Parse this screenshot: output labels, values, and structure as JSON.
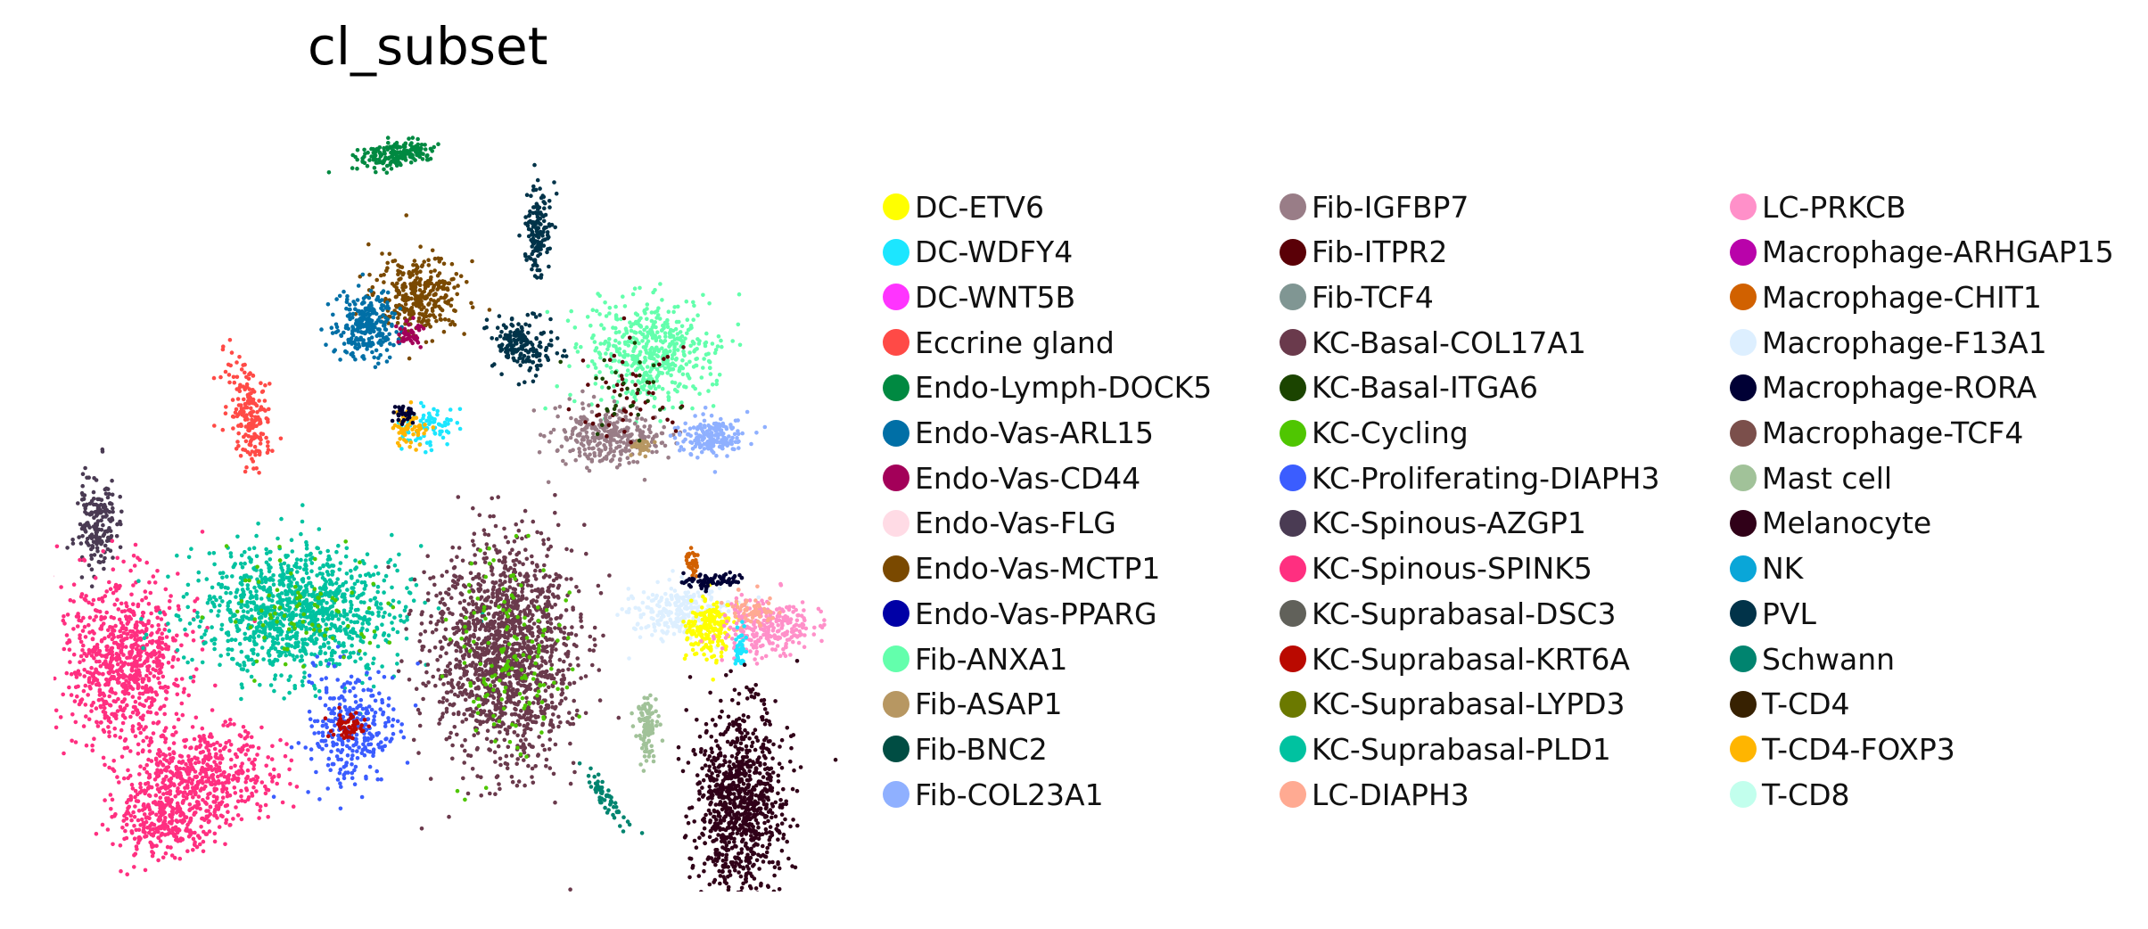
{
  "chart_data": {
    "type": "scatter",
    "title": "cl_subset",
    "xlabel": "",
    "ylabel": "",
    "grid": false,
    "axes_visible": false,
    "legend_placement": "right",
    "categories": [
      {
        "name": "DC-ETV6",
        "color": "#ffff00"
      },
      {
        "name": "DC-WDFY4",
        "color": "#1ce6ff"
      },
      {
        "name": "DC-WNT5B",
        "color": "#ff34ff"
      },
      {
        "name": "Eccrine gland",
        "color": "#ff4a46"
      },
      {
        "name": "Endo-Lymph-DOCK5",
        "color": "#008941"
      },
      {
        "name": "Endo-Vas-ARL15",
        "color": "#006fa6"
      },
      {
        "name": "Endo-Vas-CD44",
        "color": "#a30059"
      },
      {
        "name": "Endo-Vas-FLG",
        "color": "#ffdbe5"
      },
      {
        "name": "Endo-Vas-MCTP1",
        "color": "#7a4900"
      },
      {
        "name": "Endo-Vas-PPARG",
        "color": "#0000a6"
      },
      {
        "name": "Fib-ANXA1",
        "color": "#63ffac"
      },
      {
        "name": "Fib-ASAP1",
        "color": "#b79762"
      },
      {
        "name": "Fib-BNC2",
        "color": "#004d43"
      },
      {
        "name": "Fib-COL23A1",
        "color": "#8fb0ff"
      },
      {
        "name": "Fib-IGFBP7",
        "color": "#997d87"
      },
      {
        "name": "Fib-ITPR2",
        "color": "#5a0007"
      },
      {
        "name": "Fib-TCF4",
        "color": "#809693"
      },
      {
        "name": "KC-Basal-COL17A1",
        "color": "#6a3a4c"
      },
      {
        "name": "KC-Basal-ITGA6",
        "color": "#1b4400"
      },
      {
        "name": "KC-Cycling",
        "color": "#4fc601"
      },
      {
        "name": "KC-Proliferating-DIAPH3",
        "color": "#3b5dff"
      },
      {
        "name": "KC-Spinous-AZGP1",
        "color": "#4a3b53"
      },
      {
        "name": "KC-Spinous-SPINK5",
        "color": "#ff2f80"
      },
      {
        "name": "KC-Suprabasal-DSC3",
        "color": "#61615a"
      },
      {
        "name": "KC-Suprabasal-KRT6A",
        "color": "#ba0900"
      },
      {
        "name": "KC-Suprabasal-LYPD3",
        "color": "#6b7900"
      },
      {
        "name": "KC-Suprabasal-PLD1",
        "color": "#00c2a0"
      },
      {
        "name": "LC-DIAPH3",
        "color": "#ffaa92"
      },
      {
        "name": "LC-PRKCB",
        "color": "#ff90c9"
      },
      {
        "name": "Macrophage-ARHGAP15",
        "color": "#b903aa"
      },
      {
        "name": "Macrophage-CHIT1",
        "color": "#d16100"
      },
      {
        "name": "Macrophage-F13A1",
        "color": "#ddefff"
      },
      {
        "name": "Macrophage-RORA",
        "color": "#000035"
      },
      {
        "name": "Macrophage-TCF4",
        "color": "#7b4f4b"
      },
      {
        "name": "Mast cell",
        "color": "#a1c299"
      },
      {
        "name": "Melanocyte",
        "color": "#300018"
      },
      {
        "name": "NK",
        "color": "#0aa6d8"
      },
      {
        "name": "PVL",
        "color": "#013349"
      },
      {
        "name": "Schwann",
        "color": "#00846f"
      },
      {
        "name": "T-CD4",
        "color": "#372101"
      },
      {
        "name": "T-CD4-FOXP3",
        "color": "#ffb500"
      },
      {
        "name": "T-CD8",
        "color": "#c2ffed"
      }
    ]
  }
}
